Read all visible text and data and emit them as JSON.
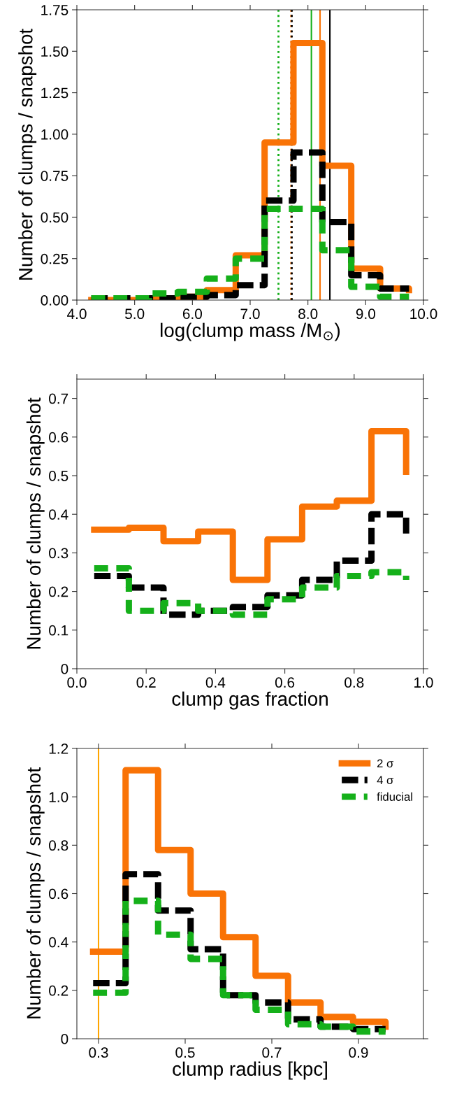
{
  "chart_data": [
    {
      "type": "step",
      "xlabel": "log(clump mass /M$_{⊙}$)",
      "ylabel": "Number of clumps / snapshot",
      "xlim": [
        4.0,
        10.0
      ],
      "xticks": [
        {
          "value": 4,
          "label": "4.0"
        },
        {
          "value": 5,
          "label": "5.0"
        },
        {
          "value": 6,
          "label": "6.0"
        },
        {
          "value": 7,
          "label": "7.0"
        },
        {
          "value": 8,
          "label": "8.0"
        },
        {
          "value": 9,
          "label": "9.0"
        },
        {
          "value": 10,
          "label": "10.0"
        }
      ],
      "ylim": [
        0,
        1.75
      ],
      "yticks": [
        {
          "value": 0,
          "label": "0.00"
        },
        {
          "value": 0.25,
          "label": "0.25"
        },
        {
          "value": 0.5,
          "label": "0.50"
        },
        {
          "value": 0.75,
          "label": "0.75"
        },
        {
          "value": 1.0,
          "label": "1.00"
        },
        {
          "value": 1.25,
          "label": "1.25"
        },
        {
          "value": 1.5,
          "label": "1.50"
        },
        {
          "value": 1.75,
          "label": "1.75"
        }
      ],
      "x": [
        4.25,
        4.75,
        5.25,
        5.75,
        6.25,
        6.75,
        7.25,
        7.75,
        8.25,
        8.75,
        9.25,
        9.75
      ],
      "grid": false,
      "legend": false,
      "series": [
        {
          "color": "#f97306",
          "line_style": "solid",
          "values": [
            0.0,
            0.0,
            0.01,
            0.02,
            0.06,
            0.27,
            0.95,
            1.55,
            0.81,
            0.19,
            0.07,
            0.06
          ]
        },
        {
          "color": "#000000",
          "line_style": "dashed",
          "values": [
            0.01,
            0.01,
            0.01,
            0.02,
            0.03,
            0.09,
            0.6,
            0.89,
            0.47,
            0.15,
            0.07,
            0.07
          ]
        },
        {
          "color": "#15b01a",
          "line_style": "dashed",
          "values": [
            0.01,
            0.01,
            0.04,
            0.05,
            0.13,
            0.25,
            0.55,
            0.55,
            0.3,
            0.08,
            0.02,
            0.02
          ]
        }
      ],
      "ref_lines": [
        {
          "axis": "x",
          "value": 7.49,
          "color": "#15b01a",
          "line_style": "dotted"
        },
        {
          "axis": "x",
          "value": 7.71,
          "color": "#f97306",
          "line_style": "dotted"
        },
        {
          "axis": "x",
          "value": 7.72,
          "color": "#000000",
          "line_style": "dotted"
        },
        {
          "axis": "x",
          "value": 8.06,
          "color": "#15b01a",
          "line_style": "solid"
        },
        {
          "axis": "x",
          "value": 8.21,
          "color": "#f97306",
          "line_style": "solid"
        },
        {
          "axis": "x",
          "value": 8.38,
          "color": "#000000",
          "line_style": "solid"
        }
      ]
    },
    {
      "type": "step",
      "xlabel": "clump gas fraction",
      "ylabel": "Number of clumps / snapshot",
      "xlim": [
        0.0,
        1.0
      ],
      "xticks": [
        {
          "value": 0,
          "label": "0.0"
        },
        {
          "value": 0.2,
          "label": "0.2"
        },
        {
          "value": 0.4,
          "label": "0.4"
        },
        {
          "value": 0.6,
          "label": "0.6"
        },
        {
          "value": 0.8,
          "label": "0.8"
        },
        {
          "value": 1.0,
          "label": "1.0"
        }
      ],
      "ylim": [
        0,
        0.75
      ],
      "yticks": [
        0,
        0.1,
        0.2,
        0.3,
        0.4,
        0.5,
        0.6,
        0.7
      ],
      "x": [
        0.05,
        0.15,
        0.25,
        0.35,
        0.45,
        0.55,
        0.65,
        0.75,
        0.85,
        0.95
      ],
      "grid": false,
      "legend": false,
      "series": [
        {
          "color": "#f97306",
          "line_style": "solid",
          "values": [
            0.36,
            0.365,
            0.33,
            0.355,
            0.23,
            0.335,
            0.42,
            0.435,
            0.615,
            0.51
          ]
        },
        {
          "color": "#000000",
          "line_style": "dashed",
          "values": [
            0.24,
            0.21,
            0.14,
            0.15,
            0.16,
            0.19,
            0.23,
            0.28,
            0.4,
            0.35
          ]
        },
        {
          "color": "#15b01a",
          "line_style": "dashed",
          "values": [
            0.26,
            0.15,
            0.17,
            0.15,
            0.14,
            0.18,
            0.21,
            0.24,
            0.25,
            0.23
          ]
        }
      ]
    },
    {
      "type": "step",
      "xlabel": "clump radius [kpc]",
      "ylabel": "Number of clumps / snapshot",
      "xlim": [
        0.25,
        1.05
      ],
      "xticks": [
        0.3,
        0.5,
        0.7,
        0.9
      ],
      "ylim": [
        0,
        1.2
      ],
      "yticks": [
        0,
        0.2,
        0.4,
        0.6,
        0.8,
        {
          "value": 1.0,
          "label": "1.0"
        },
        1.2
      ],
      "x": [
        0.2875,
        0.3625,
        0.4375,
        0.5125,
        0.5875,
        0.6625,
        0.7375,
        0.8125,
        0.8875,
        0.9625
      ],
      "grid": false,
      "legend": "top right",
      "series": [
        {
          "name": "2 σ",
          "color": "#f97306",
          "line_style": "solid",
          "values": [
            0.36,
            1.11,
            0.78,
            0.6,
            0.42,
            0.26,
            0.15,
            0.09,
            0.07,
            0.05
          ]
        },
        {
          "name": "4 σ",
          "color": "#000000",
          "line_style": "dashed",
          "values": [
            0.23,
            0.68,
            0.53,
            0.37,
            0.18,
            0.15,
            0.08,
            0.05,
            0.04,
            0.04
          ]
        },
        {
          "name": "fiducial",
          "color": "#15b01a",
          "line_style": "dashed",
          "values": [
            0.19,
            0.57,
            0.43,
            0.33,
            0.18,
            0.12,
            0.06,
            0.05,
            0.03,
            0.03
          ]
        }
      ],
      "ref_lines": [
        {
          "axis": "x",
          "value": 0.3,
          "color": "#ffa500",
          "line_style": "solid"
        }
      ]
    }
  ]
}
